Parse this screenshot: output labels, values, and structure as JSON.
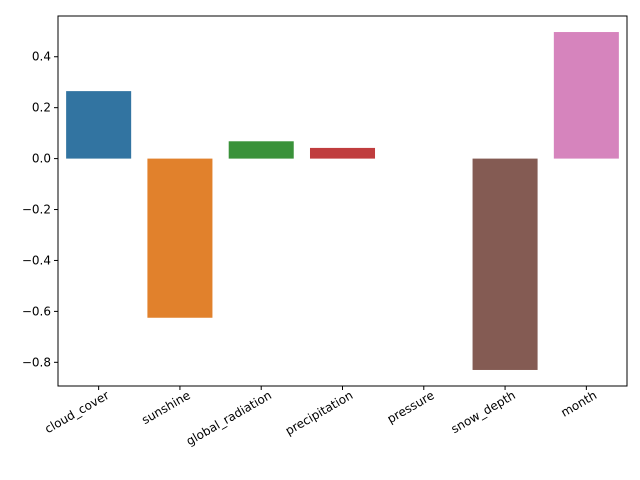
{
  "chart_data": {
    "type": "bar",
    "title": "",
    "xlabel": "",
    "ylabel": "",
    "categories": [
      "cloud_cover",
      "sunshine",
      "global_radiation",
      "precipitation",
      "pressure",
      "snow_depth",
      "month"
    ],
    "values": [
      0.265,
      -0.625,
      0.068,
      0.042,
      0.0,
      -0.83,
      0.497
    ],
    "colors": [
      "#3274a1",
      "#e1812c",
      "#3a923a",
      "#c03d3e",
      "#9372b2",
      "#845b53",
      "#d684bd"
    ],
    "ylim": [
      -0.893,
      0.56
    ],
    "yticks": [
      -0.8,
      -0.6,
      -0.4,
      -0.2,
      0.0,
      0.2,
      0.4
    ],
    "ytick_labels": [
      "−0.8",
      "−0.6",
      "−0.4",
      "−0.2",
      "0.0",
      "0.2",
      "0.4"
    ],
    "x_tick_rotation_deg": 30,
    "grid": false,
    "legend": "none"
  }
}
